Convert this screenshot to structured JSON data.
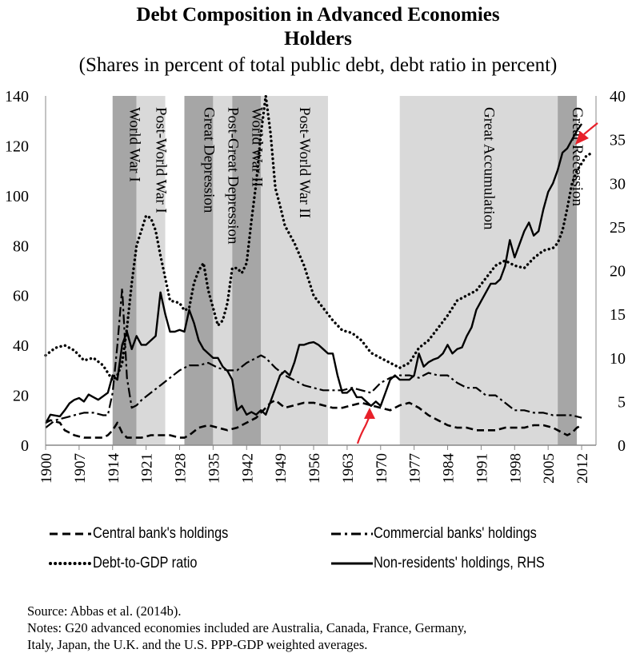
{
  "chart_title_line1": "Debt Composition in Advanced Economies",
  "chart_title_line2": "Holders",
  "chart_subtitle": "(Shares in percent of total public debt, debt ratio in percent)",
  "source_note": "Source: Abbas et al. (2014b).",
  "notes_line1": "Notes: G20 advanced economies included are Australia, Canada, France, Germany,",
  "notes_line2": "Italy, Japan, the U.K. and the U.S. PPP-GDP weighted averages.",
  "colors": {
    "dark_shade": "#a6a6a6",
    "light_shade": "#d9d9d9",
    "line": "#000000",
    "arrow": "#e8202a"
  },
  "chart_data": {
    "type": "line",
    "xlim": [
      1900,
      2015
    ],
    "ylim_left": [
      0,
      140
    ],
    "ylim_right": [
      0,
      40
    ],
    "left_ticks": [
      0,
      20,
      40,
      60,
      80,
      100,
      120,
      140
    ],
    "right_ticks": [
      0,
      5,
      10,
      15,
      20,
      25,
      30,
      35,
      40
    ],
    "x_ticks": [
      1900,
      1907,
      1914,
      1921,
      1928,
      1935,
      1942,
      1949,
      1956,
      1963,
      1970,
      1977,
      1984,
      1991,
      1998,
      2005,
      2012
    ],
    "shaded_periods": [
      {
        "label": "World War I",
        "start": 1914,
        "end": 1919,
        "shade": "dark"
      },
      {
        "label": "Post-World War I",
        "start": 1919,
        "end": 1925,
        "shade": "light"
      },
      {
        "label": "Great Depression",
        "start": 1929,
        "end": 1935,
        "shade": "dark"
      },
      {
        "label": "Post-Great Depression",
        "start": 1935,
        "end": 1939,
        "shade": "light"
      },
      {
        "label": "World War II",
        "start": 1939,
        "end": 1945,
        "shade": "dark"
      },
      {
        "label": "Post-World War II",
        "start": 1945,
        "end": 1959,
        "shade": "light"
      },
      {
        "label": "Great Accumulation",
        "start": 1974,
        "end": 2007,
        "shade": "light"
      },
      {
        "label": "Great Recession",
        "start": 2007,
        "end": 2011,
        "shade": "dark"
      }
    ],
    "series": [
      {
        "name": "Central bank's holdings",
        "axis": "left",
        "style": "dashed",
        "x": [
          1900,
          1901,
          1903,
          1904,
          1905,
          1906,
          1908,
          1910,
          1912,
          1913,
          1914,
          1915,
          1916,
          1917,
          1918,
          1919,
          1920,
          1922,
          1924,
          1926,
          1928,
          1929,
          1930,
          1932,
          1934,
          1936,
          1938,
          1940,
          1942,
          1944,
          1945,
          1946,
          1947,
          1948,
          1950,
          1952,
          1954,
          1956,
          1958,
          1960,
          1962,
          1964,
          1966,
          1968,
          1970,
          1972,
          1974,
          1976,
          1978,
          1980,
          1982,
          1984,
          1986,
          1988,
          1990,
          1992,
          1994,
          1996,
          1998,
          2000,
          2002,
          2004,
          2006,
          2008,
          2009,
          2010,
          2011,
          2012
        ],
        "y": [
          9,
          10,
          9,
          6,
          5,
          4,
          3,
          3,
          3,
          4,
          6,
          9,
          5,
          3,
          3,
          3,
          3,
          4,
          4,
          4,
          3,
          3,
          4,
          7,
          8,
          7,
          6,
          7,
          9,
          11,
          13,
          15,
          17,
          18,
          15,
          16,
          17,
          17,
          16,
          15,
          15,
          16,
          17,
          16,
          15,
          14,
          16,
          17,
          15,
          12,
          10,
          8,
          7,
          7,
          6,
          6,
          6,
          7,
          7,
          7,
          8,
          8,
          7,
          5,
          4,
          5,
          7,
          8
        ]
      },
      {
        "name": "Commercial banks' holdings",
        "axis": "left",
        "style": "dash-dot",
        "x": [
          1900,
          1902,
          1904,
          1906,
          1908,
          1910,
          1912,
          1913,
          1914,
          1915,
          1916,
          1917,
          1918,
          1919,
          1920,
          1922,
          1924,
          1926,
          1928,
          1930,
          1932,
          1934,
          1936,
          1938,
          1940,
          1942,
          1944,
          1945,
          1946,
          1948,
          1950,
          1952,
          1954,
          1956,
          1958,
          1960,
          1962,
          1964,
          1966,
          1968,
          1970,
          1972,
          1974,
          1976,
          1978,
          1980,
          1982,
          1984,
          1986,
          1988,
          1990,
          1992,
          1994,
          1996,
          1998,
          2000,
          2002,
          2004,
          2006,
          2008,
          2010,
          2012
        ],
        "y": [
          7,
          10,
          11,
          12,
          13,
          13,
          12,
          12,
          21,
          40,
          63,
          27,
          15,
          16,
          18,
          21,
          24,
          27,
          30,
          32,
          32,
          33,
          31,
          30,
          30,
          33,
          35,
          36,
          35,
          31,
          28,
          26,
          24,
          23,
          22,
          22,
          22,
          23,
          22,
          21,
          25,
          27,
          28,
          28,
          27,
          29,
          28,
          28,
          25,
          23,
          23,
          20,
          20,
          17,
          14,
          14,
          13,
          13,
          12,
          12,
          12,
          11
        ]
      },
      {
        "name": "Debt-to-GDP ratio",
        "axis": "left",
        "style": "dotted",
        "x": [
          1900,
          1902,
          1904,
          1906,
          1908,
          1910,
          1912,
          1914,
          1915,
          1916,
          1917,
          1918,
          1919,
          1920,
          1921,
          1922,
          1923,
          1924,
          1925,
          1926,
          1928,
          1929,
          1930,
          1931,
          1932,
          1933,
          1934,
          1935,
          1936,
          1937,
          1938,
          1939,
          1940,
          1941,
          1942,
          1943,
          1944,
          1945,
          1946,
          1947,
          1948,
          1949,
          1950,
          1952,
          1954,
          1956,
          1958,
          1960,
          1962,
          1964,
          1966,
          1968,
          1970,
          1972,
          1974,
          1976,
          1978,
          1980,
          1982,
          1984,
          1986,
          1988,
          1990,
          1992,
          1994,
          1996,
          1998,
          2000,
          2002,
          2004,
          2006,
          2007,
          2008,
          2009,
          2010,
          2011,
          2012,
          2013,
          2014
        ],
        "y": [
          36,
          39,
          40,
          38,
          34,
          35,
          32,
          26,
          28,
          33,
          47,
          65,
          80,
          86,
          92,
          91,
          86,
          76,
          67,
          58,
          57,
          54,
          55,
          65,
          70,
          73,
          62,
          55,
          48,
          50,
          57,
          71,
          71,
          69,
          73,
          90,
          105,
          125,
          140,
          125,
          103,
          96,
          88,
          81,
          72,
          60,
          55,
          50,
          46,
          45,
          42,
          37,
          35,
          33,
          31,
          33,
          39,
          42,
          47,
          52,
          58,
          60,
          62,
          67,
          72,
          74,
          72,
          71,
          75,
          78,
          79,
          81,
          86,
          95,
          105,
          110,
          113,
          116,
          117
        ]
      },
      {
        "name": "Non-residents' holdings, RHS",
        "axis": "right",
        "style": "solid",
        "x": [
          1900,
          1901,
          1903,
          1904,
          1905,
          1906,
          1907,
          1908,
          1909,
          1910,
          1911,
          1912,
          1913,
          1914,
          1915,
          1916,
          1917,
          1918,
          1919,
          1920,
          1921,
          1922,
          1923,
          1924,
          1925,
          1926,
          1927,
          1928,
          1929,
          1930,
          1931,
          1932,
          1933,
          1934,
          1935,
          1936,
          1937,
          1938,
          1939,
          1940,
          1941,
          1942,
          1943,
          1944,
          1945,
          1946,
          1947,
          1948,
          1949,
          1950,
          1951,
          1952,
          1953,
          1954,
          1955,
          1956,
          1957,
          1958,
          1959,
          1960,
          1961,
          1962,
          1963,
          1964,
          1965,
          1966,
          1967,
          1968,
          1969,
          1970,
          1971,
          1972,
          1973,
          1974,
          1975,
          1976,
          1977,
          1978,
          1979,
          1980,
          1981,
          1982,
          1983,
          1984,
          1985,
          1986,
          1987,
          1988,
          1989,
          1990,
          1991,
          1992,
          1993,
          1994,
          1995,
          1996,
          1997,
          1998,
          1999,
          2000,
          2001,
          2002,
          2003,
          2004,
          2005,
          2006,
          2007,
          2008,
          2009,
          2010,
          2011,
          2012
        ],
        "y": [
          2.5,
          3.5,
          3.3,
          4.0,
          4.8,
          5.2,
          5.4,
          5.0,
          5.8,
          5.5,
          5.2,
          5.6,
          6.0,
          8.0,
          7.5,
          11.5,
          13.0,
          11.0,
          12.5,
          11.5,
          11.5,
          12.0,
          12.5,
          17.5,
          15.0,
          13.0,
          13.0,
          13.2,
          13.0,
          15.5,
          14.0,
          12.0,
          11.0,
          10.5,
          10.0,
          10.0,
          9.0,
          8.5,
          7.5,
          4.0,
          4.5,
          3.5,
          3.8,
          3.5,
          4.0,
          3.5,
          5.0,
          6.5,
          8.0,
          8.5,
          8.0,
          9.5,
          11.5,
          11.5,
          11.7,
          11.8,
          11.5,
          11.0,
          10.5,
          10.5,
          8.0,
          6.0,
          6.0,
          6.5,
          5.5,
          5.5,
          5.0,
          4.5,
          5.0,
          4.5,
          6.0,
          7.5,
          8.0,
          7.5,
          7.5,
          7.5,
          8.0,
          10.5,
          9.0,
          9.5,
          9.8,
          10.0,
          10.5,
          11.5,
          10.5,
          11.0,
          11.2,
          12.5,
          13.5,
          15.5,
          16.5,
          17.5,
          18.5,
          18.5,
          19.0,
          20.5,
          23.5,
          21.5,
          23.0,
          24.5,
          25.5,
          24.0,
          24.5,
          27.0,
          29.0,
          30.0,
          31.5,
          33.5,
          34.0,
          35.0,
          36.0,
          36.8
        ]
      }
    ]
  }
}
